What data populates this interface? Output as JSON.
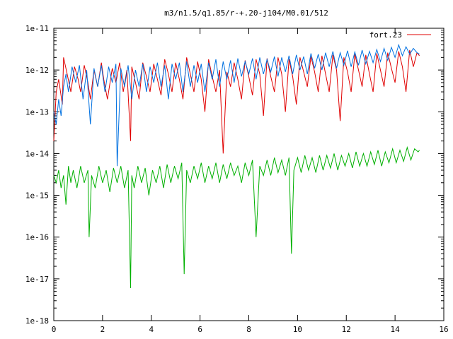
{
  "chart_data": {
    "type": "line",
    "title": "m3/n1.5/q1.85/r-+.20-j104/M0.01/512",
    "xlabel": "",
    "ylabel": "",
    "xlim": [
      0,
      16
    ],
    "ylim": [
      1e-18,
      1e-11
    ],
    "y_scale": "log",
    "x_ticks": [
      0,
      2,
      4,
      6,
      8,
      10,
      12,
      14,
      16
    ],
    "x_tick_labels": [
      "0",
      "2",
      "4",
      "6",
      "8",
      "10",
      "12",
      "14",
      "16"
    ],
    "y_ticks": [
      1e-18,
      1e-17,
      1e-16,
      1e-15,
      1e-14,
      1e-13,
      1e-12,
      1e-11
    ],
    "y_tick_labels": [
      "1e-18",
      "1e-17",
      "1e-16",
      "1e-15",
      "1e-14",
      "1e-13",
      "1e-12",
      "1e-11"
    ],
    "grid": false,
    "legend": {
      "position": "top-right",
      "entries": [
        {
          "label": "fort.23",
          "color": "#e00000"
        }
      ]
    },
    "series": [
      {
        "color": "#e00000",
        "x": [
          0.0,
          0.1,
          0.2,
          0.35,
          0.4,
          0.55,
          0.7,
          0.85,
          1.0,
          1.1,
          1.25,
          1.4,
          1.5,
          1.65,
          1.8,
          1.95,
          2.05,
          2.2,
          2.4,
          2.55,
          2.7,
          2.85,
          3.0,
          3.15,
          3.2,
          3.35,
          3.5,
          3.65,
          3.8,
          3.95,
          4.1,
          4.25,
          4.4,
          4.55,
          4.7,
          4.85,
          5.0,
          5.15,
          5.3,
          5.45,
          5.6,
          5.75,
          5.9,
          6.05,
          6.2,
          6.35,
          6.5,
          6.65,
          6.8,
          6.95,
          7.1,
          7.25,
          7.4,
          7.55,
          7.7,
          7.85,
          8.0,
          8.15,
          8.3,
          8.45,
          8.6,
          8.75,
          8.9,
          9.05,
          9.2,
          9.35,
          9.5,
          9.65,
          9.8,
          9.95,
          10.1,
          10.25,
          10.4,
          10.55,
          10.7,
          10.85,
          11.0,
          11.15,
          11.3,
          11.45,
          11.6,
          11.75,
          11.9,
          12.05,
          12.2,
          12.35,
          12.5,
          12.65,
          12.8,
          12.95,
          13.1,
          13.25,
          13.4,
          13.55,
          13.7,
          13.85,
          14.0,
          14.15,
          14.3,
          14.45,
          14.6,
          14.75,
          14.9,
          15.0
        ],
        "y": [
          2e-14,
          3e-13,
          6e-13,
          1.5e-13,
          2e-12,
          8e-13,
          3e-13,
          1.2e-12,
          6e-13,
          3e-13,
          1.3e-12,
          5e-13,
          2e-13,
          1e-12,
          4e-13,
          1.5e-12,
          6e-13,
          2e-13,
          1.1e-12,
          5e-13,
          1.5e-12,
          3e-13,
          1e-12,
          2e-14,
          1.2e-12,
          5e-13,
          2e-13,
          1.5e-12,
          7e-13,
          3e-13,
          1.4e-12,
          6e-13,
          2.5e-13,
          1.8e-12,
          8e-13,
          3e-13,
          1.5e-12,
          6e-13,
          2e-13,
          2e-12,
          8e-13,
          3e-13,
          1.6e-12,
          6e-13,
          1e-13,
          1.8e-12,
          7e-13,
          3e-13,
          1e-12,
          1e-14,
          9e-13,
          4e-13,
          1.5e-12,
          6e-13,
          2e-13,
          1.7e-12,
          7e-13,
          2.5e-13,
          1.8e-12,
          8e-13,
          8e-14,
          1.9e-12,
          7e-13,
          3e-13,
          2e-12,
          8e-13,
          1e-13,
          1.8e-12,
          7e-13,
          1.5e-13,
          2e-12,
          9e-13,
          4e-13,
          2.1e-12,
          9e-13,
          3e-13,
          2.2e-12,
          8e-13,
          3e-13,
          2.3e-12,
          1e-12,
          6e-14,
          2e-12,
          9e-13,
          3e-13,
          2.4e-12,
          1e-12,
          4e-13,
          2.3e-12,
          8e-13,
          3e-13,
          2.5e-12,
          1e-12,
          4e-13,
          2.6e-12,
          1.1e-12,
          5e-13,
          2.8e-12,
          1.2e-12,
          3e-13,
          3e-12,
          1.2e-12,
          2.6e-12,
          2.2e-12
        ]
      },
      {
        "color": "#0070e0",
        "x": [
          0.0,
          0.1,
          0.2,
          0.3,
          0.4,
          0.5,
          0.6,
          0.75,
          0.9,
          1.05,
          1.2,
          1.35,
          1.5,
          1.65,
          1.8,
          1.95,
          2.1,
          2.25,
          2.4,
          2.55,
          2.6,
          2.75,
          2.9,
          3.05,
          3.2,
          3.35,
          3.5,
          3.65,
          3.8,
          3.95,
          4.1,
          4.25,
          4.4,
          4.55,
          4.7,
          4.85,
          5.0,
          5.15,
          5.3,
          5.45,
          5.6,
          5.75,
          5.9,
          6.05,
          6.2,
          6.35,
          6.5,
          6.65,
          6.8,
          6.95,
          7.1,
          7.25,
          7.4,
          7.55,
          7.7,
          7.85,
          8.0,
          8.15,
          8.3,
          8.45,
          8.6,
          8.75,
          8.9,
          9.05,
          9.2,
          9.35,
          9.5,
          9.65,
          9.8,
          9.95,
          10.1,
          10.25,
          10.4,
          10.55,
          10.7,
          10.85,
          11.0,
          11.15,
          11.3,
          11.45,
          11.6,
          11.75,
          11.9,
          12.05,
          12.2,
          12.35,
          12.5,
          12.65,
          12.8,
          12.95,
          13.1,
          13.25,
          13.4,
          13.55,
          13.7,
          13.85,
          14.0,
          14.15,
          14.3,
          14.45,
          14.6,
          14.75,
          14.9,
          15.0
        ],
        "y": [
          1e-13,
          5e-14,
          2e-13,
          8e-14,
          4e-13,
          8e-13,
          3e-13,
          1.2e-12,
          5e-13,
          1.3e-12,
          2e-13,
          1e-12,
          5e-14,
          1.1e-12,
          4e-13,
          1.3e-12,
          3e-13,
          1.2e-12,
          5e-13,
          1.4e-12,
          5e-15,
          1.1e-12,
          4e-13,
          1.3e-12,
          2e-13,
          1e-12,
          4e-13,
          1.4e-12,
          3e-13,
          1.2e-12,
          5e-13,
          1.5e-12,
          4e-13,
          1.3e-12,
          2e-13,
          1.4e-12,
          6e-13,
          1.5e-12,
          3e-13,
          1.6e-12,
          4e-13,
          1.3e-12,
          5e-13,
          1.4e-12,
          3e-13,
          1.5e-12,
          6e-13,
          1.8e-12,
          4e-13,
          1.6e-12,
          6e-13,
          1.7e-12,
          5e-13,
          1.9e-12,
          7e-13,
          1.6e-12,
          8e-13,
          1.9e-12,
          6e-13,
          2e-12,
          8e-13,
          1.8e-12,
          9e-13,
          2.1e-12,
          7e-13,
          2e-12,
          9e-13,
          2.2e-12,
          8e-13,
          2.3e-12,
          1e-12,
          2.1e-12,
          8e-13,
          2.5e-12,
          1.1e-12,
          2.4e-12,
          1e-12,
          2.6e-12,
          1.2e-12,
          2.8e-12,
          1.1e-12,
          2.6e-12,
          1.3e-12,
          2.9e-12,
          1.2e-12,
          2.7e-12,
          1.3e-12,
          3e-12,
          1.4e-12,
          2.8e-12,
          1.5e-12,
          3.1e-12,
          1.6e-12,
          3.3e-12,
          1.7e-12,
          3.5e-12,
          2e-12,
          4e-12,
          2.2e-12,
          3.6e-12,
          2.4e-12,
          3.3e-12,
          2.6e-12,
          2.4e-12
        ]
      },
      {
        "color": "#00b000",
        "x": [
          0.0,
          0.1,
          0.2,
          0.3,
          0.4,
          0.5,
          0.6,
          0.7,
          0.8,
          0.95,
          1.1,
          1.25,
          1.4,
          1.45,
          1.55,
          1.7,
          1.85,
          2.0,
          2.15,
          2.3,
          2.45,
          2.6,
          2.75,
          2.9,
          3.05,
          3.15,
          3.2,
          3.3,
          3.45,
          3.6,
          3.75,
          3.9,
          4.05,
          4.2,
          4.35,
          4.5,
          4.65,
          4.8,
          4.95,
          5.1,
          5.25,
          5.35,
          5.45,
          5.6,
          5.75,
          5.9,
          6.05,
          6.2,
          6.35,
          6.5,
          6.65,
          6.8,
          6.95,
          7.1,
          7.25,
          7.4,
          7.55,
          7.7,
          7.85,
          8.0,
          8.15,
          8.3,
          8.45,
          8.6,
          8.75,
          8.9,
          9.05,
          9.2,
          9.35,
          9.5,
          9.65,
          9.75,
          9.85,
          10.0,
          10.15,
          10.3,
          10.45,
          10.6,
          10.75,
          10.9,
          11.05,
          11.2,
          11.35,
          11.5,
          11.65,
          11.8,
          11.95,
          12.1,
          12.25,
          12.4,
          12.55,
          12.7,
          12.85,
          13.0,
          13.15,
          13.3,
          13.45,
          13.6,
          13.75,
          13.9,
          14.05,
          14.2,
          14.35,
          14.5,
          14.65,
          14.8,
          14.95,
          15.0
        ],
        "y": [
          3e-15,
          2e-15,
          4e-15,
          1.5e-15,
          3e-15,
          6e-16,
          5e-15,
          2e-15,
          4e-15,
          1.5e-15,
          5e-15,
          2e-15,
          4e-15,
          1e-16,
          3e-15,
          1.5e-15,
          5e-15,
          2e-15,
          4e-15,
          1.2e-15,
          4.5e-15,
          2e-15,
          5e-15,
          1.5e-15,
          4e-15,
          6e-18,
          3e-15,
          1.5e-15,
          5e-15,
          2e-15,
          4.5e-15,
          1e-15,
          4e-15,
          2e-15,
          5e-15,
          1.5e-15,
          5.5e-15,
          2e-15,
          5e-15,
          2.5e-15,
          6e-15,
          1.3e-17,
          4e-15,
          2e-15,
          5e-15,
          2.5e-15,
          6e-15,
          2e-15,
          5e-15,
          2.5e-15,
          6e-15,
          2e-15,
          5.5e-15,
          2.5e-15,
          6e-15,
          3e-15,
          5e-15,
          2e-15,
          6e-15,
          3e-15,
          7e-15,
          1e-16,
          5e-15,
          3e-15,
          7e-15,
          3e-15,
          8e-15,
          3.5e-15,
          7e-15,
          3e-15,
          8e-15,
          4e-17,
          4e-15,
          8e-15,
          3.5e-15,
          9e-15,
          4e-15,
          8e-15,
          3.5e-15,
          9e-15,
          4e-15,
          9e-15,
          4.5e-15,
          1e-14,
          4e-15,
          9e-15,
          5e-15,
          1e-14,
          4.5e-15,
          1.1e-14,
          5e-15,
          1e-14,
          5e-15,
          1.1e-14,
          5.5e-15,
          1.2e-14,
          5e-15,
          1.1e-14,
          6e-15,
          1.3e-14,
          6e-15,
          1.2e-14,
          6.5e-15,
          1.4e-14,
          7e-15,
          1.3e-14,
          1.1e-14,
          1.2e-14
        ]
      }
    ]
  }
}
